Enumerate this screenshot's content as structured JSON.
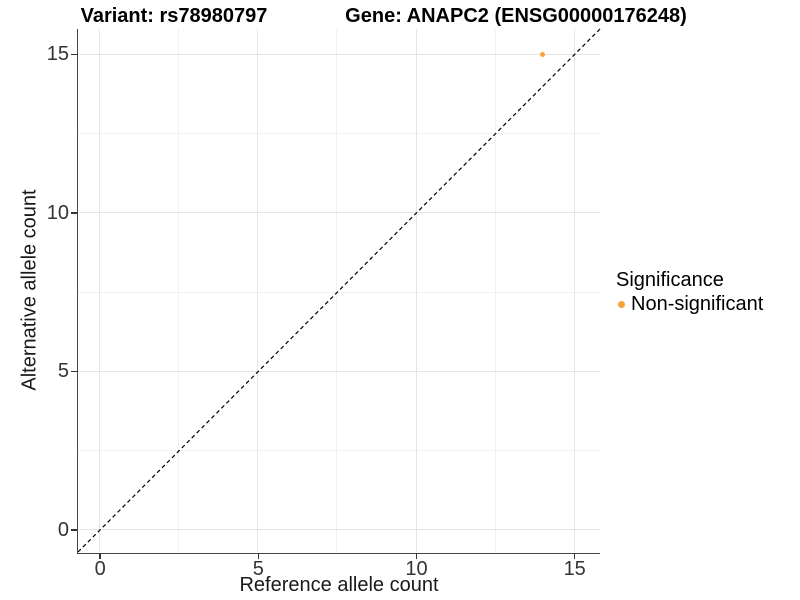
{
  "chart_data": {
    "type": "scatter",
    "title_left": "Variant: rs78980797",
    "title_right": "Gene: ANAPC2 (ENSG00000176248)",
    "xlabel": "Reference allele count",
    "ylabel": "Alternative allele count",
    "xlim": [
      -0.7,
      15.8
    ],
    "ylim": [
      -0.7,
      15.8
    ],
    "xticks": [
      0,
      5,
      10,
      15
    ],
    "yticks": [
      0,
      5,
      10,
      15
    ],
    "xtick_labels": [
      "0",
      "5",
      "10",
      "15"
    ],
    "ytick_labels": [
      "0",
      "5",
      "10",
      "15"
    ],
    "minor_ticks": [
      2.5,
      7.5,
      12.5
    ],
    "grid": "major and minor gridlines, light grey on white",
    "legend_position": "right",
    "legend_title": "Significance",
    "series": [
      {
        "name": "Non-significant",
        "color": "#F9A23C",
        "points": [
          {
            "x": 14,
            "y": 15
          }
        ]
      }
    ],
    "reference_line": {
      "equation": "y = x",
      "style": "dashed",
      "color": "#000000",
      "from": [
        -0.7,
        -0.7
      ],
      "to": [
        15.8,
        15.8
      ]
    }
  },
  "legend": {
    "title": "Significance",
    "items": [
      {
        "label": "Non-significant",
        "color": "#F9A23C"
      }
    ]
  },
  "colors": {
    "background": "#ffffff",
    "axis_line": "#454545",
    "tick_text": "#333333",
    "grid_major": "#e5e5e5",
    "grid_minor": "#f1f1f1",
    "point_orange": "#F9A23C"
  }
}
